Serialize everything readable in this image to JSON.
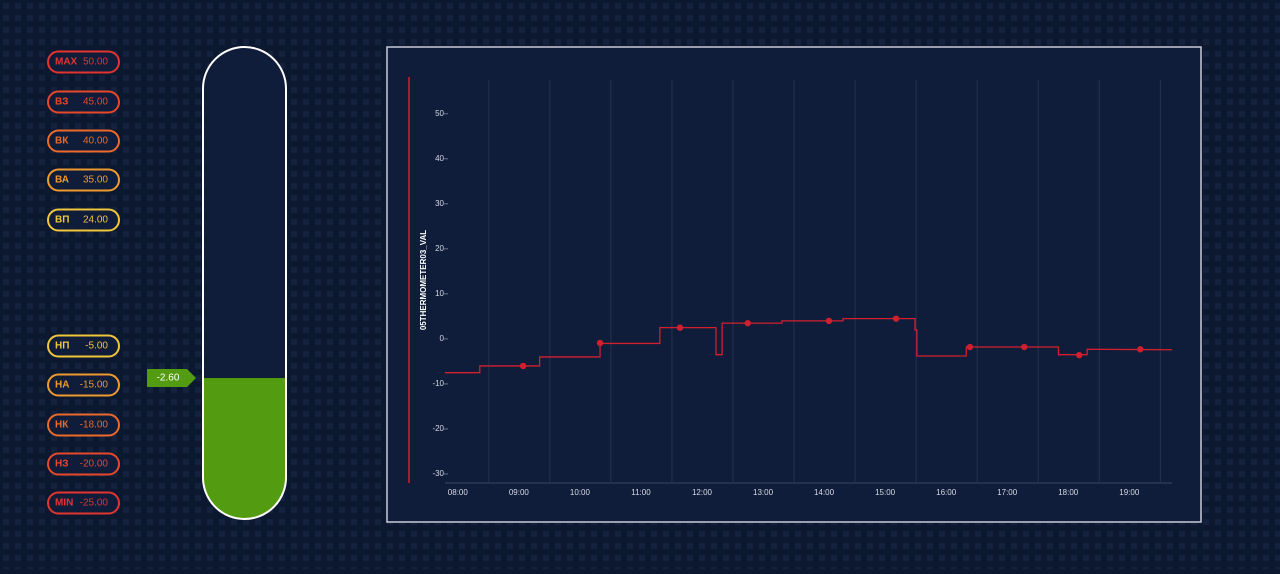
{
  "thresholds": [
    {
      "label": "MAX",
      "value": {
        "value": 50,
        "label": "50.00"
      },
      "color": "#e3342f"
    },
    {
      "label": "ВЗ",
      "value": {
        "value": 45,
        "label": "45.00"
      },
      "color": "#e8482a"
    },
    {
      "label": "ВК",
      "value": {
        "value": 40,
        "label": "40.00"
      },
      "color": "#ec6a2a"
    },
    {
      "label": "ВА",
      "value": {
        "value": 35,
        "label": "35.00"
      },
      "color": "#ee9a2e"
    },
    {
      "label": "ВП",
      "value": {
        "value": 24,
        "label": "24.00"
      },
      "color": "#f0c63a"
    },
    {
      "label": "НП",
      "value": {
        "value": -5,
        "label": "-5.00"
      },
      "color": "#f0c63a"
    },
    {
      "label": "НА",
      "value": {
        "value": -15,
        "label": "-15.00"
      },
      "color": "#ee9a2e"
    },
    {
      "label": "НК",
      "value": {
        "value": -18,
        "label": "-18.00"
      },
      "color": "#ec6a2a"
    },
    {
      "label": "НЗ",
      "value": {
        "value": -20,
        "label": "-20.00"
      },
      "color": "#e8482a"
    },
    {
      "label": "MIN",
      "value": {
        "value": -25,
        "label": "-25.00"
      },
      "color": "#e3342f"
    }
  ],
  "gauge": {
    "value": {
      "value": -2.6,
      "label": "-2.60"
    },
    "color": "#539b10"
  },
  "chart_data": {
    "type": "line",
    "y_label": "05THERMOMETER03_VAL",
    "color": "#d0202e",
    "x": [
      7.79,
      8.36,
      8.36,
      9.34,
      9.34,
      10.33,
      10.33,
      11.31,
      11.31,
      12.23,
      12.23,
      12.33,
      12.33,
      13.31,
      13.31,
      14.31,
      14.31,
      15.49,
      15.49,
      15.52,
      15.52,
      16.33,
      16.33,
      17.84,
      17.84,
      18.31,
      18.31,
      19.7
    ],
    "values": [
      -7.5,
      -7.5,
      -6,
      -6,
      -4,
      -4,
      -1,
      -1,
      2.5,
      2.5,
      -3.5,
      -3.5,
      3.5,
      3.5,
      4,
      4,
      4.5,
      4.5,
      2,
      2,
      -3.8,
      -3.8,
      -1.8,
      -1.8,
      -3.5,
      -3.5,
      -2.3,
      -2.4
    ],
    "points_x": [
      9.07,
      10.33,
      11.64,
      12.75,
      14.08,
      15.18,
      16.39,
      17.28,
      18.18,
      19.18
    ],
    "points": [
      -6,
      -0.9,
      2.5,
      3.5,
      4,
      4.5,
      -1.8,
      -1.8,
      -3.6,
      -2.3
    ],
    "xlim": [
      7.79,
      19.7
    ],
    "ylim": [
      -32,
      57.5
    ],
    "xticks": [
      {
        "value": 8,
        "label": "08:00"
      },
      {
        "value": 9,
        "label": "09:00"
      },
      {
        "value": 10,
        "label": "10:00"
      },
      {
        "value": 11,
        "label": "11:00"
      },
      {
        "value": 12,
        "label": "12:00"
      },
      {
        "value": 13,
        "label": "13:00"
      },
      {
        "value": 14,
        "label": "14:00"
      },
      {
        "value": 15,
        "label": "15:00"
      },
      {
        "value": 16,
        "label": "16:00"
      },
      {
        "value": 17,
        "label": "17:00"
      },
      {
        "value": 18,
        "label": "18:00"
      },
      {
        "value": 19,
        "label": "19:00"
      }
    ],
    "yticks": [
      -30,
      -20,
      -10,
      0,
      10,
      20,
      30,
      40,
      50
    ],
    "grid": true
  }
}
